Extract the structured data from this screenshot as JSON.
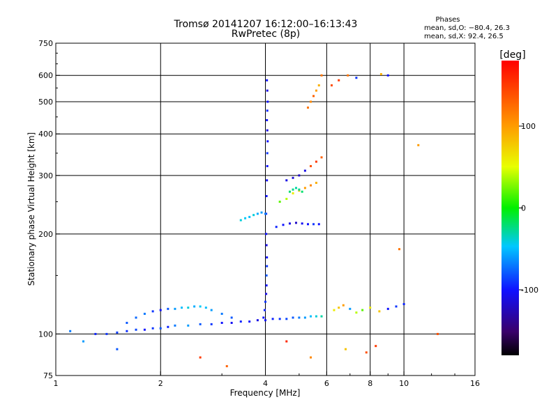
{
  "chart_data": {
    "type": "scatter",
    "title": "Tromsø 20141207 16:12:00–16:13:43",
    "subtitle": "RwPretec (8p)",
    "xlabel": "Frequency [MHz]",
    "ylabel": "Stationary phase Virtual Height [km]",
    "x_scale": "log",
    "y_scale": "log",
    "xlim": [
      1,
      16
    ],
    "ylim": [
      75,
      750
    ],
    "x_ticks": [
      1,
      2,
      4,
      6,
      8,
      10,
      16
    ],
    "x_tick_labels": [
      "1",
      "2",
      "4",
      "6",
      "8",
      "10",
      "16"
    ],
    "y_ticks": [
      75,
      100,
      200,
      300,
      400,
      500,
      600,
      750
    ],
    "y_tick_labels": [
      "75",
      "100",
      "200",
      "300",
      "400",
      "500",
      "600",
      "750"
    ],
    "grid": true,
    "stats": {
      "heading": "Phases",
      "line_o": "mean, sd,O: −80.4, 26.3",
      "line_x": "mean, sd,X:  92.4, 26.5"
    },
    "colorbar": {
      "label": "[deg]",
      "range": [
        -180,
        180
      ],
      "ticks": [
        100,
        0,
        -100
      ],
      "tick_labels": [
        "100",
        "0",
        "-100"
      ],
      "colormap": "rainbow"
    },
    "series": [
      {
        "x": [
          1.3,
          1.4,
          1.5,
          1.6,
          1.7,
          1.8,
          1.9,
          2.0,
          2.1,
          2.2,
          2.4,
          2.6,
          2.8,
          3.0,
          3.2,
          3.4,
          3.6,
          3.8,
          4.0,
          4.2,
          4.4,
          4.6,
          4.8,
          5.0,
          5.2,
          5.4,
          5.6,
          5.8
        ],
        "y": [
          100,
          100,
          101,
          102,
          103,
          103,
          104,
          104,
          105,
          106,
          106,
          107,
          107,
          108,
          108,
          109,
          109,
          110,
          110,
          111,
          111,
          111,
          112,
          112,
          112,
          113,
          113,
          113
        ],
        "phase": [
          -95,
          -90,
          -88,
          -92,
          -85,
          -100,
          -90,
          -80,
          -95,
          -70,
          -60,
          -80,
          -90,
          -100,
          -105,
          -95,
          -100,
          -110,
          -100,
          -95,
          -90,
          -85,
          -80,
          -70,
          -60,
          -50,
          -40,
          -30
        ]
      },
      {
        "x": [
          1.6,
          1.7,
          1.8,
          1.9,
          2.0,
          2.1,
          2.2,
          2.3,
          2.4,
          2.5,
          2.6,
          2.7,
          2.8,
          3.0,
          3.2
        ],
        "y": [
          108,
          112,
          115,
          117,
          118,
          119,
          119,
          120,
          120,
          121,
          121,
          120,
          118,
          115,
          112
        ],
        "phase": [
          -80,
          -75,
          -70,
          -90,
          -100,
          -80,
          -60,
          -50,
          -40,
          -55,
          -45,
          -50,
          -60,
          -70,
          -80
        ]
      },
      {
        "x": [
          3.95,
          3.98,
          4.0,
          4.02,
          4.03,
          4.03,
          4.04,
          4.04,
          4.03,
          4.02,
          4.02,
          4.03,
          4.04,
          4.05,
          4.05,
          4.06,
          4.05,
          4.04,
          4.05,
          4.06,
          4.05,
          4.04
        ],
        "y": [
          112,
          118,
          125,
          132,
          140,
          150,
          160,
          170,
          185,
          200,
          230,
          260,
          290,
          320,
          350,
          380,
          410,
          440,
          470,
          500,
          540,
          580
        ],
        "phase": [
          -100,
          -95,
          -90,
          -110,
          -100,
          -80,
          -90,
          -100,
          -110,
          -100,
          -95,
          -100,
          -105,
          -100,
          -90,
          -100,
          -110,
          -100,
          -95,
          -100,
          -110,
          -100
        ]
      },
      {
        "x": [
          3.4,
          3.5,
          3.6,
          3.7,
          3.8,
          3.9,
          4.0
        ],
        "y": [
          220,
          223,
          225,
          228,
          230,
          232,
          230
        ],
        "phase": [
          -40,
          -45,
          -50,
          -40,
          -55,
          -60,
          -70
        ]
      },
      {
        "x": [
          4.3,
          4.5,
          4.7,
          4.9,
          5.1,
          5.3,
          5.5,
          5.7
        ],
        "y": [
          210,
          213,
          215,
          216,
          215,
          214,
          214,
          214
        ],
        "phase": [
          -95,
          -100,
          -110,
          -120,
          -105,
          -100,
          -90,
          -100
        ]
      },
      {
        "x": [
          4.4,
          4.6,
          4.8,
          5.0,
          5.2,
          5.4,
          5.6
        ],
        "y": [
          250,
          255,
          265,
          270,
          275,
          280,
          285
        ],
        "phase": [
          20,
          40,
          60,
          80,
          100,
          110,
          90
        ]
      },
      {
        "x": [
          4.6,
          4.8,
          5.0,
          5.2,
          5.4,
          5.6,
          5.8
        ],
        "y": [
          290,
          295,
          300,
          310,
          320,
          330,
          340
        ],
        "phase": [
          -110,
          -115,
          -120,
          -110,
          140,
          150,
          130
        ]
      },
      {
        "x": [
          4.7,
          4.8,
          4.9,
          5.0,
          5.1
        ],
        "y": [
          268,
          272,
          275,
          272,
          268
        ],
        "phase": [
          -20,
          -25,
          -30,
          -25,
          -20
        ]
      },
      {
        "x": [
          5.3,
          5.4,
          5.5,
          5.6,
          5.7,
          5.8
        ],
        "y": [
          480,
          500,
          520,
          540,
          560,
          600
        ],
        "phase": [
          120,
          110,
          130,
          100,
          90,
          120
        ]
      },
      {
        "x": [
          6.3,
          6.5,
          6.7,
          7.0,
          7.3,
          7.6,
          8.0,
          8.5,
          9.0,
          9.5,
          10.0
        ],
        "y": [
          118,
          120,
          122,
          119,
          116,
          118,
          120,
          117,
          119,
          121,
          123
        ],
        "phase": [
          60,
          80,
          100,
          -60,
          40,
          20,
          60,
          80,
          -100,
          -90,
          -95
        ]
      },
      {
        "x": [
          6.2,
          6.5,
          6.9,
          7.3,
          8.6,
          9.0
        ],
        "y": [
          560,
          580,
          600,
          590,
          605,
          600
        ],
        "phase": [
          140,
          150,
          120,
          -90,
          90,
          -100
        ]
      },
      {
        "x": [
          1.1,
          1.2,
          1.5,
          2.6,
          3.1,
          4.6,
          5.4,
          6.8,
          7.8,
          8.3,
          9.7,
          11.0,
          12.5
        ],
        "y": [
          102,
          95,
          90,
          85,
          80,
          95,
          85,
          90,
          88,
          92,
          180,
          370,
          100
        ],
        "phase": [
          -70,
          -60,
          -80,
          150,
          130,
          160,
          110,
          80,
          140,
          150,
          120,
          100,
          140
        ]
      }
    ]
  }
}
